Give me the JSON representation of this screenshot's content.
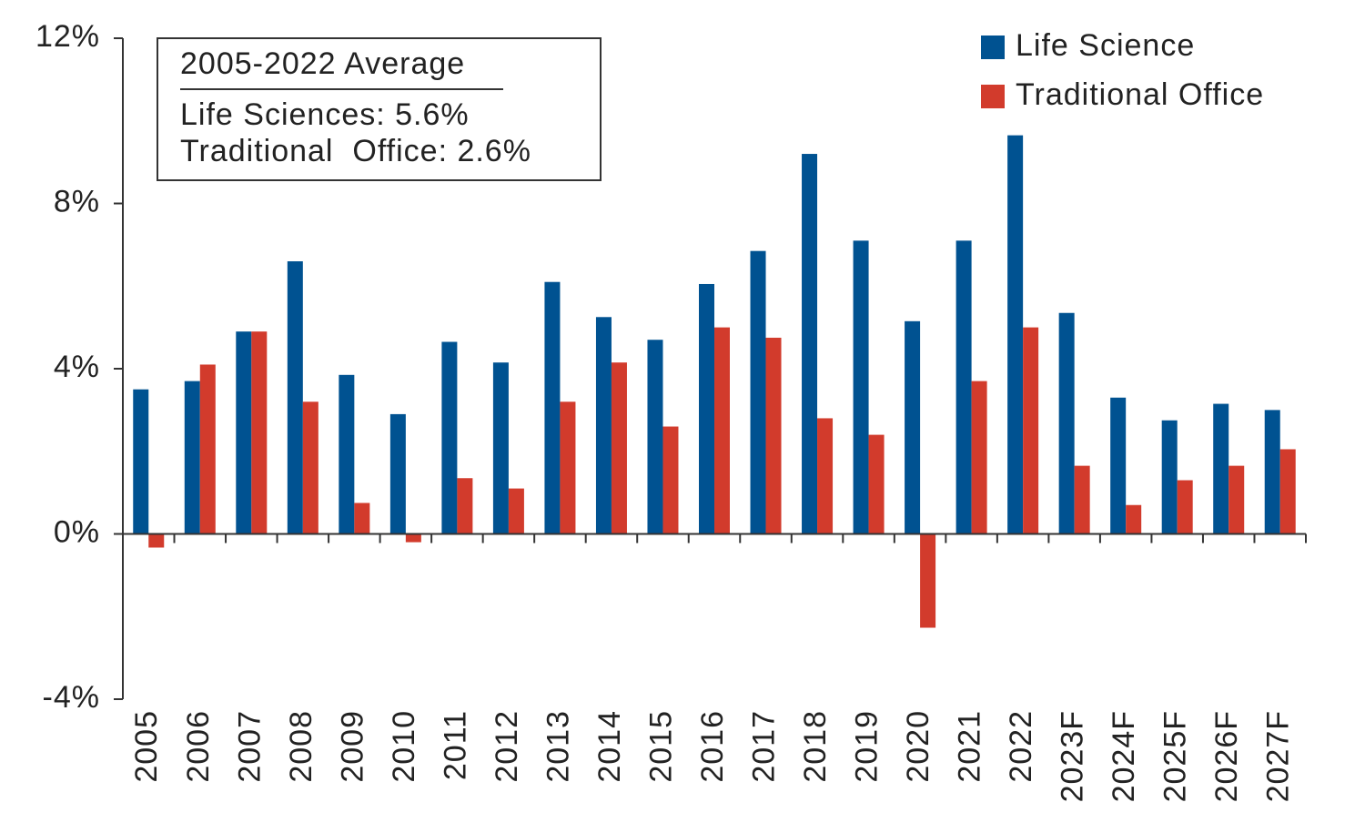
{
  "chart_data": {
    "type": "bar",
    "categories": [
      "2005",
      "2006",
      "2007",
      "2008",
      "2009",
      "2010",
      "2011",
      "2012",
      "2013",
      "2014",
      "2015",
      "2016",
      "2017",
      "2018",
      "2019",
      "2020",
      "2021",
      "2022",
      "2023F",
      "2024F",
      "2025F",
      "2026F",
      "2027F"
    ],
    "series": [
      {
        "name": "Life Science",
        "color": "#005291",
        "values": [
          3.5,
          3.7,
          4.9,
          6.6,
          3.85,
          2.9,
          4.65,
          4.15,
          6.1,
          5.25,
          4.7,
          6.05,
          6.85,
          9.2,
          7.1,
          5.15,
          7.1,
          9.65,
          5.35,
          3.3,
          2.75,
          3.15,
          3.0
        ]
      },
      {
        "name": "Traditional Office",
        "color": "#d23b2c",
        "values": [
          -0.33,
          4.1,
          4.9,
          3.2,
          0.75,
          -0.2,
          1.35,
          1.1,
          3.2,
          4.15,
          2.6,
          5.0,
          4.75,
          2.8,
          2.4,
          -2.27,
          3.7,
          5.0,
          1.65,
          0.7,
          1.3,
          1.65,
          2.05
        ]
      }
    ],
    "ylim": [
      -4,
      12
    ],
    "yticks": [
      {
        "value": -4,
        "label": "-4%"
      },
      {
        "value": 0,
        "label": "0%"
      },
      {
        "value": 4,
        "label": "4%"
      },
      {
        "value": 8,
        "label": "8%"
      },
      {
        "value": 12,
        "label": "12%"
      }
    ],
    "legend": "top-right",
    "annotation": {
      "title": "2005-2022 Average",
      "lines": [
        "Life Sciences: 5.6%",
        "Traditional  Office: 2.6%"
      ]
    }
  }
}
